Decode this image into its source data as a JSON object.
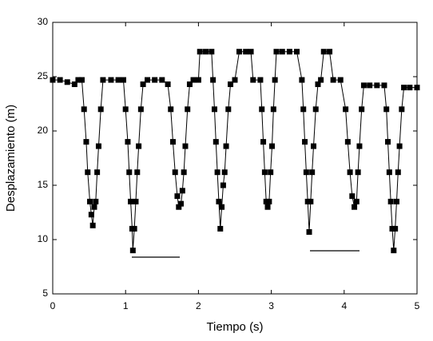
{
  "chart_data": {
    "type": "line",
    "x_label": "Tiempo (s)",
    "y_label": "Desplazamiento (m)",
    "xlim": [
      0,
      5
    ],
    "xticks": [
      0,
      1,
      2,
      3,
      4,
      5
    ],
    "ylim": [
      5,
      30
    ],
    "yticks": [
      5,
      10,
      15,
      20,
      25,
      30
    ],
    "color": "#000000",
    "marker": "square",
    "x": [
      0,
      0.1,
      0.2,
      0.3,
      0.35,
      0.4,
      0.43,
      0.46,
      0.48,
      0.51,
      0.53,
      0.55,
      0.57,
      0.59,
      0.61,
      0.63,
      0.66,
      0.69,
      0.8,
      0.9,
      0.97,
      1.0,
      1.03,
      1.05,
      1.07,
      1.09,
      1.1,
      1.12,
      1.14,
      1.16,
      1.18,
      1.21,
      1.24,
      1.3,
      1.4,
      1.5,
      1.58,
      1.62,
      1.65,
      1.68,
      1.71,
      1.73,
      1.76,
      1.78,
      1.8,
      1.82,
      1.85,
      1.88,
      1.93,
      2.0,
      2.02,
      2.1,
      2.18,
      2.2,
      2.22,
      2.24,
      2.26,
      2.28,
      2.3,
      2.32,
      2.34,
      2.36,
      2.38,
      2.41,
      2.44,
      2.5,
      2.56,
      2.65,
      2.72,
      2.75,
      2.85,
      2.87,
      2.89,
      2.91,
      2.93,
      2.95,
      2.97,
      2.99,
      3.01,
      3.03,
      3.05,
      3.07,
      3.15,
      3.25,
      3.35,
      3.42,
      3.44,
      3.46,
      3.48,
      3.5,
      3.52,
      3.54,
      3.56,
      3.58,
      3.61,
      3.64,
      3.68,
      3.72,
      3.8,
      3.85,
      3.95,
      4.02,
      4.05,
      4.08,
      4.11,
      4.14,
      4.17,
      4.19,
      4.21,
      4.24,
      4.27,
      4.35,
      4.45,
      4.55,
      4.58,
      4.6,
      4.62,
      4.64,
      4.66,
      4.68,
      4.7,
      4.72,
      4.74,
      4.76,
      4.79,
      4.82,
      4.9,
      5.0
    ],
    "values": [
      24.7,
      24.7,
      24.5,
      24.3,
      24.7,
      24.7,
      22,
      19,
      16.2,
      13.5,
      12.3,
      11.3,
      13,
      13.5,
      16.2,
      18.6,
      22,
      24.7,
      24.7,
      24.7,
      24.7,
      22,
      19,
      16.2,
      13.5,
      11,
      9,
      11,
      13.5,
      16.2,
      18.6,
      22,
      24.3,
      24.7,
      24.7,
      24.7,
      24.3,
      22,
      19,
      16.2,
      14,
      13,
      13.3,
      14.5,
      16.2,
      18.6,
      22,
      24.3,
      24.7,
      24.7,
      27.3,
      27.3,
      27.3,
      24.7,
      22,
      19,
      16.2,
      13.5,
      11,
      13,
      15,
      16.2,
      18.6,
      22,
      24.3,
      24.7,
      27.3,
      27.3,
      27.3,
      24.7,
      24.7,
      22,
      19,
      16.2,
      13.5,
      13,
      13.5,
      16.2,
      18.6,
      22,
      24.7,
      27.3,
      27.3,
      27.3,
      27.3,
      24.7,
      22,
      19,
      16.2,
      13.5,
      10.7,
      13.5,
      16.2,
      18.6,
      22,
      24.3,
      24.7,
      27.3,
      27.3,
      24.7,
      24.7,
      22,
      19,
      16.2,
      14,
      13,
      13.5,
      16.2,
      18.6,
      22,
      24.2,
      24.2,
      24.2,
      24.2,
      22,
      19,
      16.2,
      13.5,
      11,
      9,
      11,
      13.5,
      16.2,
      18.6,
      22,
      24,
      24,
      24
    ]
  }
}
